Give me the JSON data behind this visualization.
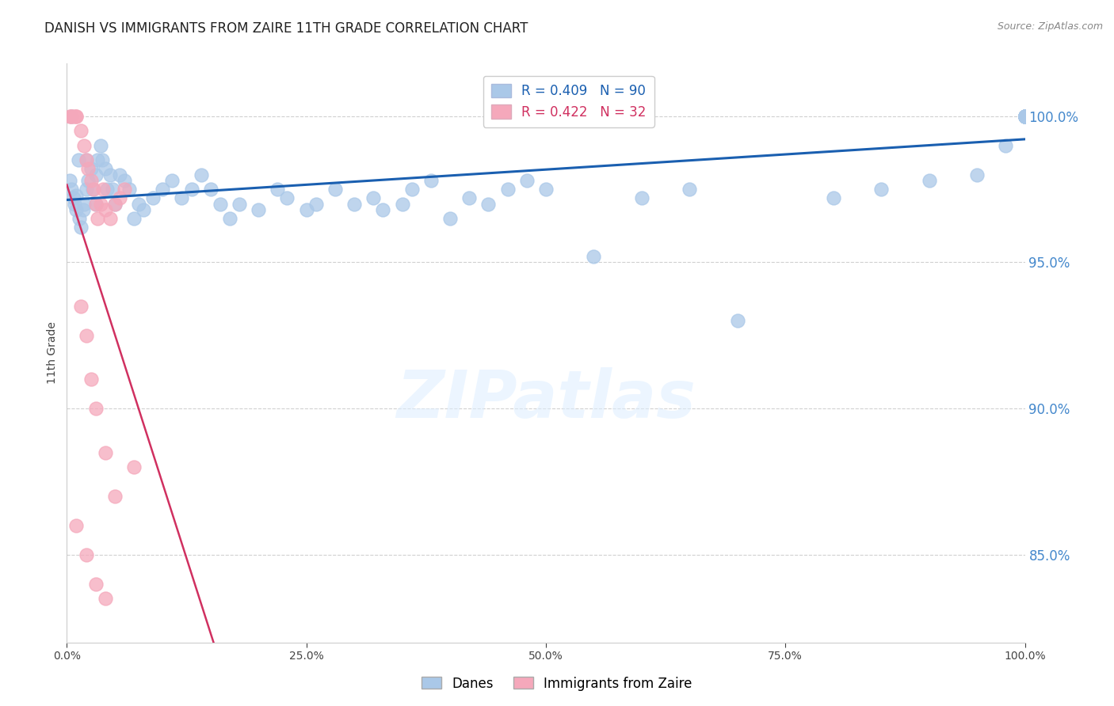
{
  "title": "DANISH VS IMMIGRANTS FROM ZAIRE 11TH GRADE CORRELATION CHART",
  "source": "Source: ZipAtlas.com",
  "ylabel": "11th Grade",
  "right_yticks": [
    85.0,
    90.0,
    95.0,
    100.0
  ],
  "xmin": 0.0,
  "xmax": 100.0,
  "ymin": 82.0,
  "ymax": 101.8,
  "danes_color": "#aac8e8",
  "danes_edge_color": "#aac8e8",
  "immigrants_color": "#f5a8bb",
  "immigrants_edge_color": "#f5a8bb",
  "danes_line_color": "#1a5fb0",
  "immigrants_line_color": "#d03060",
  "legend_R_danes": "R = 0.409",
  "legend_N_danes": "N = 90",
  "legend_R_immigrants": "R = 0.422",
  "legend_N_immigrants": "N = 32",
  "watermark_text": "ZIPatlas",
  "background_color": "#ffffff",
  "grid_color": "#d0d0d0",
  "right_axis_color": "#4488cc",
  "title_fontsize": 12,
  "axis_label_fontsize": 10,
  "tick_fontsize": 10,
  "legend_fontsize": 12,
  "danes_x": [
    0.3,
    0.5,
    0.5,
    0.7,
    0.8,
    1.0,
    1.0,
    1.2,
    1.3,
    1.5,
    1.7,
    1.8,
    2.0,
    2.0,
    2.2,
    2.5,
    2.7,
    3.0,
    3.0,
    3.2,
    3.5,
    3.7,
    4.0,
    4.2,
    4.5,
    4.8,
    5.0,
    5.5,
    6.0,
    6.5,
    7.0,
    7.5,
    8.0,
    9.0,
    10.0,
    11.0,
    12.0,
    13.0,
    14.0,
    15.0,
    16.0,
    17.0,
    18.0,
    20.0,
    22.0,
    23.0,
    25.0,
    26.0,
    28.0,
    30.0,
    32.0,
    33.0,
    35.0,
    36.0,
    38.0,
    40.0,
    42.0,
    44.0,
    46.0,
    48.0,
    50.0,
    55.0,
    60.0,
    65.0,
    70.0,
    80.0,
    85.0,
    90.0,
    95.0,
    98.0,
    100.0,
    100.0,
    100.0,
    100.0,
    100.0,
    100.0,
    100.0,
    100.0,
    100.0,
    100.0,
    100.0,
    100.0,
    100.0,
    100.0,
    100.0,
    100.0,
    100.0,
    100.0,
    100.0,
    100.0
  ],
  "danes_y": [
    97.8,
    97.5,
    100.0,
    97.2,
    97.0,
    96.8,
    97.3,
    98.5,
    96.5,
    96.2,
    96.8,
    97.0,
    97.5,
    98.5,
    97.8,
    98.2,
    97.5,
    97.0,
    98.0,
    98.5,
    99.0,
    98.5,
    98.2,
    97.5,
    98.0,
    97.5,
    97.0,
    98.0,
    97.8,
    97.5,
    96.5,
    97.0,
    96.8,
    97.2,
    97.5,
    97.8,
    97.2,
    97.5,
    98.0,
    97.5,
    97.0,
    96.5,
    97.0,
    96.8,
    97.5,
    97.2,
    96.8,
    97.0,
    97.5,
    97.0,
    97.2,
    96.8,
    97.0,
    97.5,
    97.8,
    96.5,
    97.2,
    97.0,
    97.5,
    97.8,
    97.5,
    95.2,
    97.2,
    97.5,
    93.0,
    97.2,
    97.5,
    97.8,
    98.0,
    99.0,
    100.0,
    100.0,
    100.0,
    100.0,
    100.0,
    100.0,
    100.0,
    100.0,
    100.0,
    100.0,
    100.0,
    100.0,
    100.0,
    100.0,
    100.0,
    100.0,
    100.0,
    100.0,
    100.0,
    100.0
  ],
  "immigrants_x": [
    0.3,
    0.5,
    0.5,
    0.8,
    1.0,
    1.0,
    1.5,
    1.8,
    2.0,
    2.2,
    2.5,
    2.8,
    3.0,
    3.2,
    3.5,
    3.8,
    4.0,
    4.5,
    5.0,
    5.5,
    6.0,
    7.0,
    1.5,
    2.0,
    2.5,
    3.0,
    4.0,
    5.0,
    1.0,
    2.0,
    3.0,
    4.0
  ],
  "immigrants_y": [
    100.0,
    100.0,
    100.0,
    100.0,
    100.0,
    100.0,
    99.5,
    99.0,
    98.5,
    98.2,
    97.8,
    97.5,
    97.0,
    96.5,
    97.0,
    97.5,
    96.8,
    96.5,
    97.0,
    97.2,
    97.5,
    88.0,
    93.5,
    92.5,
    91.0,
    90.0,
    88.5,
    87.0,
    86.0,
    85.0,
    84.0,
    83.5
  ]
}
